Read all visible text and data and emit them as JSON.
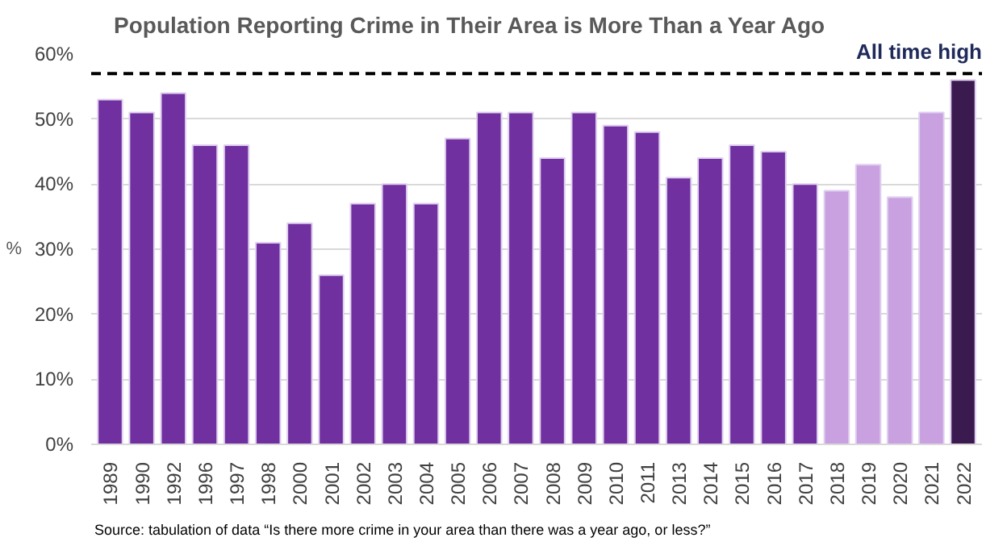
{
  "chart_data": {
    "type": "bar",
    "title": "Population Reporting Crime in Their Area is More Than a Year Ago",
    "ylabel": "%",
    "categories": [
      "1989",
      "1990",
      "1992",
      "1996",
      "1997",
      "1998",
      "2000",
      "2001",
      "2002",
      "2003",
      "2004",
      "2005",
      "2006",
      "2007",
      "2008",
      "2009",
      "2010",
      "2011",
      "2013",
      "2014",
      "2015",
      "2016",
      "2017",
      "2018",
      "2019",
      "2020",
      "2021",
      "2022"
    ],
    "values": [
      53,
      51,
      54,
      46,
      46,
      31,
      34,
      26,
      37,
      40,
      37,
      47,
      51,
      51,
      44,
      51,
      49,
      48,
      41,
      44,
      46,
      45,
      40,
      39,
      43,
      38,
      51,
      56
    ],
    "colors": [
      "#7030a0",
      "#7030a0",
      "#7030a0",
      "#7030a0",
      "#7030a0",
      "#7030a0",
      "#7030a0",
      "#7030a0",
      "#7030a0",
      "#7030a0",
      "#7030a0",
      "#7030a0",
      "#7030a0",
      "#7030a0",
      "#7030a0",
      "#7030a0",
      "#7030a0",
      "#7030a0",
      "#7030a0",
      "#7030a0",
      "#7030a0",
      "#7030a0",
      "#7030a0",
      "#c9a0e0",
      "#c9a0e0",
      "#c9a0e0",
      "#c9a0e0",
      "#3b1a50"
    ],
    "ylim": [
      0,
      60
    ],
    "yticks": [
      {
        "value": 0,
        "label": "0%"
      },
      {
        "value": 10,
        "label": "10%"
      },
      {
        "value": 20,
        "label": "20%"
      },
      {
        "value": 30,
        "label": "30%"
      },
      {
        "value": 40,
        "label": "40%"
      },
      {
        "value": 50,
        "label": "50%"
      },
      {
        "value": 60,
        "label": "60%"
      }
    ],
    "grid": "y",
    "ref_lines": [
      {
        "axis": "y",
        "value": 57,
        "label": "All time high",
        "color": "#000000",
        "line_style": "dashed"
      }
    ],
    "annotations": [
      "Source: tabulation of data “Is there more crime in your area than there was a year ago, or less?”"
    ]
  }
}
